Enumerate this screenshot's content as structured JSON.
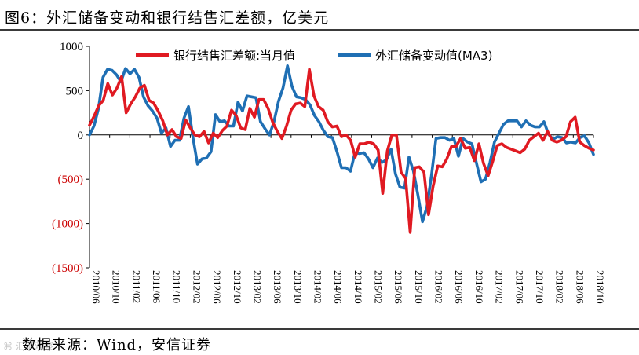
{
  "figure": {
    "title": "图6：外汇储备变动和银行结售汇差额，亿美元",
    "source": "数据来源：Wind，安信证券",
    "watermark": "⌘ 汇率观察"
  },
  "colors": {
    "series1": "#e01a22",
    "series2": "#1f6fb4",
    "negative_tick": "#cc0000",
    "axis": "#000000"
  },
  "chart_data": {
    "type": "line",
    "title": "图6：外汇储备变动和银行结售汇差额，亿美元",
    "xlabel": "",
    "ylabel": "",
    "ylim": [
      -1500,
      1000
    ],
    "yticks": [
      1000,
      500,
      0,
      -500,
      -1000,
      -1500
    ],
    "ytick_labels": [
      "1000",
      "500",
      "0",
      "(500)",
      "(1000)",
      "(1500)"
    ],
    "x_tick_labels": [
      "2010/06",
      "2010/10",
      "2011/02",
      "2011/06",
      "2011/10",
      "2012/02",
      "2012/06",
      "2012/10",
      "2013/02",
      "2013/06",
      "2013/10",
      "2014/02",
      "2014/06",
      "2014/10",
      "2015/02",
      "2015/06",
      "2015/10",
      "2016/02",
      "2016/06",
      "2016/10",
      "2017/02",
      "2017/06",
      "2017/10",
      "2018/02",
      "2018/06",
      "2018/10"
    ],
    "legend_position": "top",
    "series": [
      {
        "name": "银行结售汇差额:当月值",
        "color": "#e01a22",
        "values": [
          110,
          210,
          330,
          390,
          580,
          450,
          530,
          660,
          250,
          350,
          430,
          530,
          560,
          390,
          360,
          270,
          160,
          0,
          60,
          -20,
          -40,
          170,
          80,
          0,
          -20,
          40,
          -90,
          20,
          -30,
          50,
          100,
          280,
          220,
          80,
          60,
          300,
          200,
          400,
          400,
          300,
          140,
          40,
          -40,
          100,
          280,
          350,
          360,
          320,
          740,
          440,
          320,
          280,
          150,
          90,
          100,
          -20,
          0,
          -60,
          -250,
          -100,
          -100,
          -80,
          -100,
          -170,
          -660,
          -180,
          0,
          0,
          -420,
          -490,
          -1100,
          -370,
          -360,
          -420,
          -900,
          -580,
          -350,
          -360,
          -270,
          -130,
          -130,
          -40,
          -150,
          -140,
          -290,
          -100,
          -320,
          -460,
          -300,
          -120,
          -100,
          -140,
          -160,
          -180,
          -200,
          -160,
          -60,
          -20,
          20,
          -60,
          40,
          -60,
          -80,
          -60,
          -20,
          150,
          200,
          -80,
          -120,
          -150,
          -170
        ]
      },
      {
        "name": "外汇储备变动值(MA3)",
        "color": "#1f6fb4",
        "values": [
          0,
          100,
          300,
          650,
          740,
          730,
          680,
          600,
          750,
          690,
          740,
          650,
          430,
          330,
          270,
          190,
          20,
          80,
          -130,
          -60,
          -60,
          190,
          320,
          -30,
          -330,
          -270,
          -260,
          -190,
          230,
          150,
          160,
          100,
          100,
          370,
          270,
          440,
          430,
          420,
          150,
          70,
          0,
          150,
          380,
          530,
          780,
          550,
          430,
          420,
          400,
          340,
          220,
          150,
          50,
          -20,
          -30,
          -190,
          -370,
          -370,
          -410,
          -200,
          -210,
          -200,
          -270,
          -370,
          -260,
          -310,
          -280,
          -160,
          -440,
          -590,
          -600,
          -250,
          -410,
          -680,
          -980,
          -810,
          -460,
          -40,
          -30,
          -30,
          -60,
          -40,
          -240,
          -40,
          -80,
          -100,
          -320,
          -530,
          -500,
          -310,
          -80,
          20,
          120,
          160,
          160,
          160,
          90,
          160,
          110,
          90,
          90,
          150,
          10,
          -50,
          -20,
          -30,
          -90,
          -80,
          -90,
          -30,
          -10,
          -90,
          -220
        ]
      }
    ]
  }
}
